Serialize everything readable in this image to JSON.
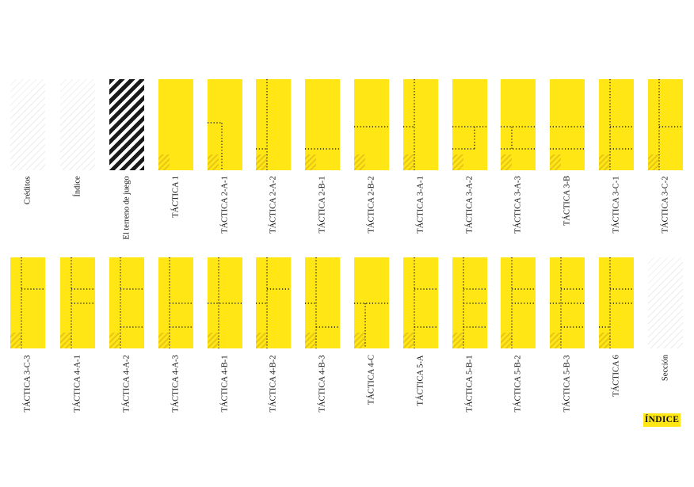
{
  "colors": {
    "yellow": "#ffe614",
    "corner_shade": "#e8c816",
    "dots": "#222222",
    "stripes": "#1a1a1a"
  },
  "rows": [
    [
      {
        "label": "Créditos",
        "style": "plain"
      },
      {
        "label": "Índice",
        "style": "plain"
      },
      {
        "label": "El terreno de juego",
        "style": "stripes"
      },
      {
        "label": "TÁCTICA 1",
        "style": "yellow"
      },
      {
        "label": "TÁCTICA 2-A-1",
        "style": "yellow"
      },
      {
        "label": "TÁCTICA 2-A-2",
        "style": "yellow"
      },
      {
        "label": "TÁCTICA 2-B-1",
        "style": "yellow"
      },
      {
        "label": "TÁCTICA 2-B-2",
        "style": "yellow"
      },
      {
        "label": "TÁCTICA 3-A-1",
        "style": "yellow"
      },
      {
        "label": "TÁCTICA 3-A-2",
        "style": "yellow"
      },
      {
        "label": "TÁCTICA 3-A-3",
        "style": "yellow"
      },
      {
        "label": "TÁCTICA 3-B",
        "style": "yellow"
      },
      {
        "label": "TÁCTICA 3-C-1",
        "style": "yellow"
      },
      {
        "label": "TÁCTICA 3-C-2",
        "style": "yellow"
      }
    ],
    [
      {
        "label": "TÁCTICA 3-C-3",
        "style": "yellow"
      },
      {
        "label": "TÁCTICA 4-A-1",
        "style": "yellow"
      },
      {
        "label": "TÁCTICA 4-A-2",
        "style": "yellow"
      },
      {
        "label": "TÁCTICA 4-A-3",
        "style": "yellow"
      },
      {
        "label": "TÁCTICA 4-B-1",
        "style": "yellow"
      },
      {
        "label": "TÁCTICA 4-B-2",
        "style": "yellow"
      },
      {
        "label": "TÁCTICA 4-B-3",
        "style": "yellow"
      },
      {
        "label": "TÁCTICA 4-C",
        "style": "yellow"
      },
      {
        "label": "TÁCTICA 5-A",
        "style": "yellow"
      },
      {
        "label": "TÁCTICA 5-B-1",
        "style": "yellow"
      },
      {
        "label": "TÁCTICA 5-B-2",
        "style": "yellow"
      },
      {
        "label": "TÁCTICA 5-B-3",
        "style": "yellow"
      },
      {
        "label": "TÁCTICA 6",
        "style": "yellow"
      },
      {
        "label": "Sección",
        "style": "plain"
      }
    ]
  ],
  "index_button": {
    "label": "ÍNDICE"
  }
}
